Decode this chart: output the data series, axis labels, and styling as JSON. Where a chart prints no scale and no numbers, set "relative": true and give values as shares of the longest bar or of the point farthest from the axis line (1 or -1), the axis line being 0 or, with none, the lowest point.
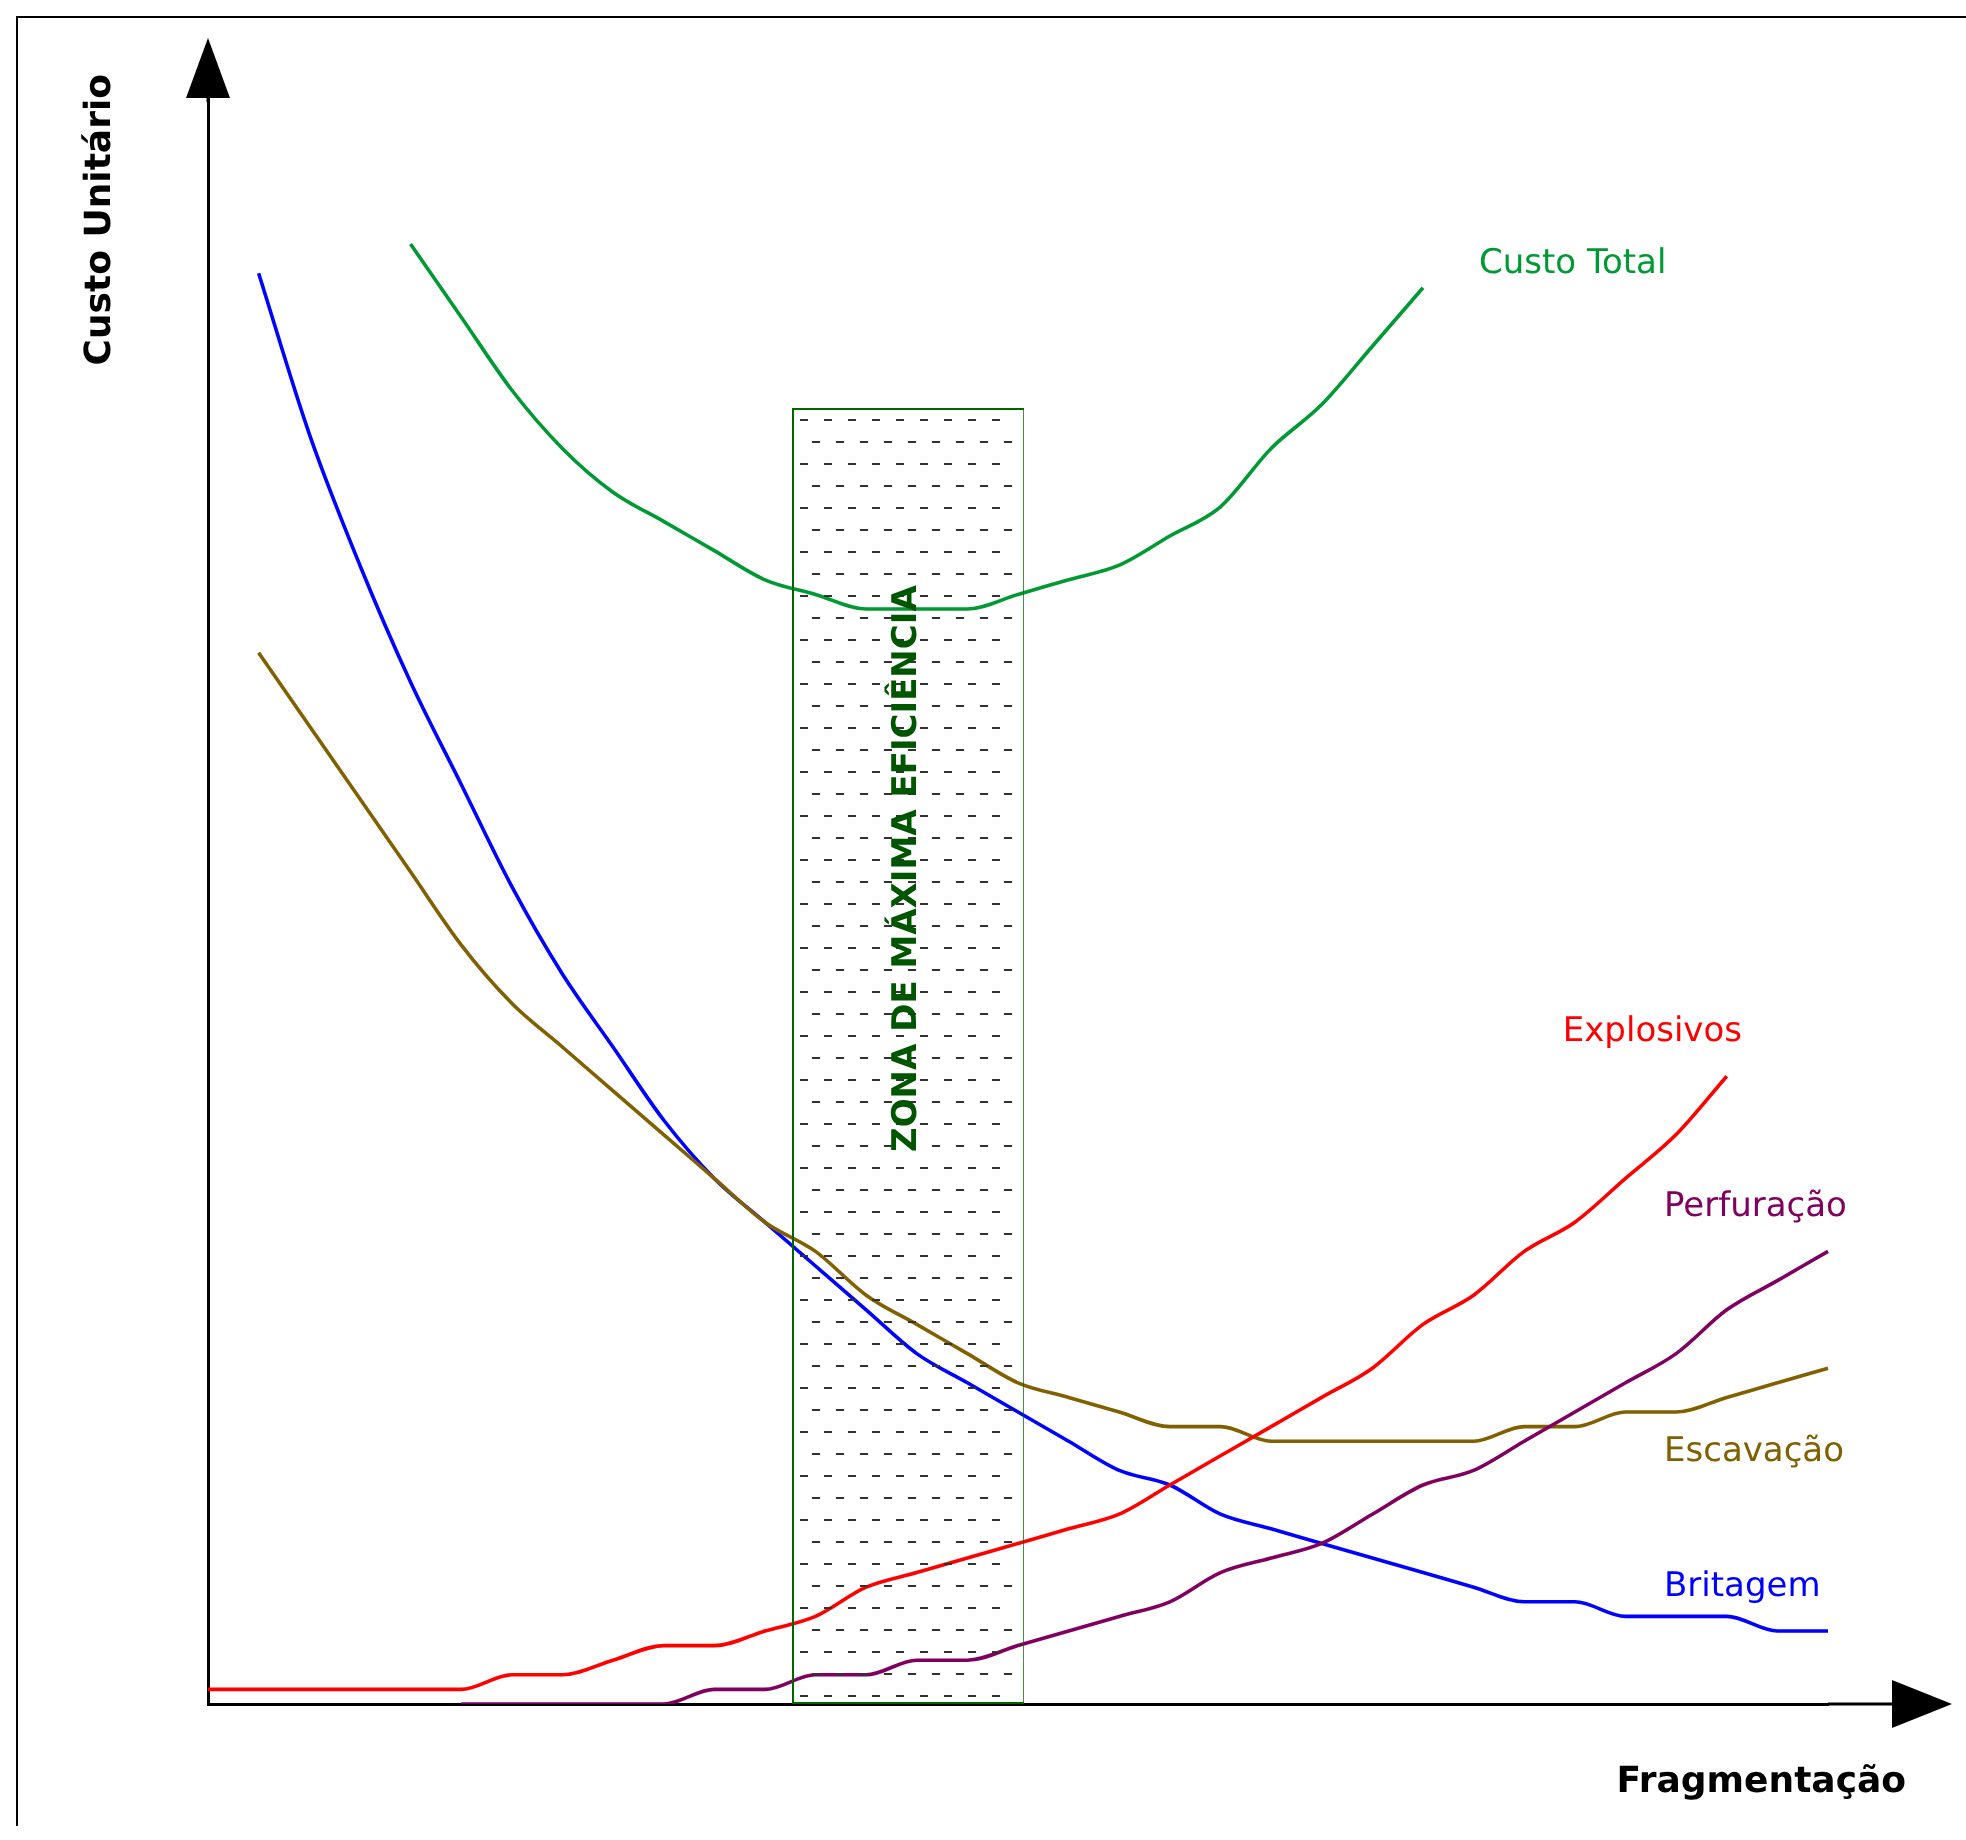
{
  "chart_data": {
    "type": "line",
    "relative": true,
    "xlabel": "Fragmentação",
    "ylabel": "Custo Unitário",
    "categories": [
      null,
      null,
      null,
      null,
      null,
      null,
      null,
      null,
      null,
      null,
      null,
      null,
      null,
      null,
      null,
      null,
      null,
      null,
      null,
      null,
      null,
      null,
      null,
      null,
      null,
      null,
      null,
      null,
      null,
      null,
      null,
      null,
      null
    ],
    "series": [
      {
        "name": "Custo Total",
        "color": "#009933",
        "values": [
          null,
          null,
          null,
          null,
          1.0,
          0.95,
          0.9,
          0.86,
          0.83,
          0.81,
          0.79,
          0.77,
          0.76,
          0.75,
          0.75,
          0.75,
          0.76,
          0.77,
          0.78,
          0.8,
          0.82,
          0.86,
          0.89,
          0.93,
          0.97,
          null,
          null,
          null,
          null,
          null,
          null,
          null,
          null
        ]
      },
      {
        "name": "Explosivos",
        "color": "#ff0000",
        "values": [
          0.01,
          0.01,
          0.01,
          0.01,
          0.01,
          0.01,
          0.02,
          0.02,
          0.03,
          0.04,
          0.04,
          0.05,
          0.06,
          0.08,
          0.09,
          0.1,
          0.11,
          0.12,
          0.13,
          0.15,
          0.17,
          0.19,
          0.21,
          0.23,
          0.26,
          0.28,
          0.31,
          0.33,
          0.36,
          0.39,
          0.43,
          null,
          null
        ]
      },
      {
        "name": "Perfuração",
        "color": "#800060",
        "values": [
          null,
          null,
          null,
          null,
          null,
          0.0,
          0.0,
          0.0,
          0.0,
          0.0,
          0.01,
          0.01,
          0.02,
          0.02,
          0.03,
          0.03,
          0.04,
          0.05,
          0.06,
          0.07,
          0.09,
          0.1,
          0.11,
          0.13,
          0.15,
          0.16,
          0.18,
          0.2,
          0.22,
          0.24,
          0.27,
          0.29,
          0.31
        ]
      },
      {
        "name": "Escavação",
        "color": "#806000",
        "values": [
          null,
          0.72,
          0.67,
          0.62,
          0.57,
          0.52,
          0.48,
          0.45,
          0.42,
          0.39,
          0.36,
          0.33,
          0.31,
          0.28,
          0.26,
          0.24,
          0.22,
          0.21,
          0.2,
          0.19,
          0.19,
          0.18,
          0.18,
          0.18,
          0.18,
          0.18,
          0.19,
          0.19,
          0.2,
          0.2,
          0.21,
          0.22,
          0.23
        ]
      },
      {
        "name": "Britagem",
        "color": "#0000ff",
        "values": [
          null,
          0.98,
          0.87,
          0.78,
          0.7,
          0.63,
          0.56,
          0.5,
          0.45,
          0.4,
          0.36,
          0.33,
          0.3,
          0.27,
          0.24,
          0.22,
          0.2,
          0.18,
          0.16,
          0.15,
          0.13,
          0.12,
          0.11,
          0.1,
          0.09,
          0.08,
          0.07,
          0.07,
          0.06,
          0.06,
          0.06,
          0.05,
          0.05
        ]
      }
    ],
    "annotations": [
      "ZONA DE MÁXIMA EFICIÊNCIA"
    ]
  }
}
